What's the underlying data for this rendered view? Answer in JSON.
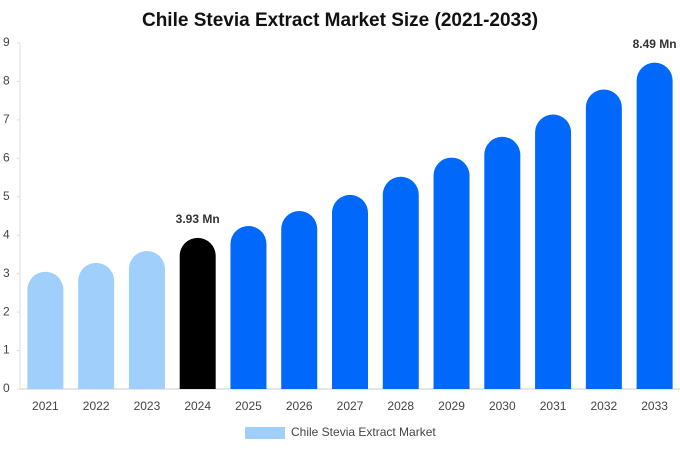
{
  "chart_data": {
    "type": "bar",
    "title": "Chile Stevia Extract Market Size (2021-2033)",
    "categories": [
      "2021",
      "2022",
      "2023",
      "2024",
      "2025",
      "2026",
      "2027",
      "2028",
      "2029",
      "2030",
      "2031",
      "2032",
      "2033"
    ],
    "series": [
      {
        "name": "Chile Stevia Extract Market",
        "color": "#a0cffc",
        "values": [
          3.05,
          3.28,
          3.59,
          3.93,
          4.24,
          4.63,
          5.05,
          5.52,
          6.02,
          6.56,
          7.14,
          7.79,
          8.49
        ],
        "value_labels": [
          null,
          null,
          null,
          "3.93 Mn",
          null,
          null,
          null,
          null,
          null,
          null,
          null,
          null,
          "8.49 Mn"
        ],
        "colors": [
          "#a0cffc",
          "#a0cffc",
          "#a0cffc",
          "#000000",
          "#0068fb",
          "#0068fb",
          "#0068fb",
          "#0068fb",
          "#0068fb",
          "#0068fb",
          "#0068fb",
          "#0068fb",
          "#0068fb"
        ]
      }
    ],
    "ylim": [
      0,
      9
    ],
    "yticks": [
      0,
      1,
      2,
      3,
      4,
      5,
      6,
      7,
      8,
      9
    ],
    "grid": false,
    "legend": "bottom"
  }
}
